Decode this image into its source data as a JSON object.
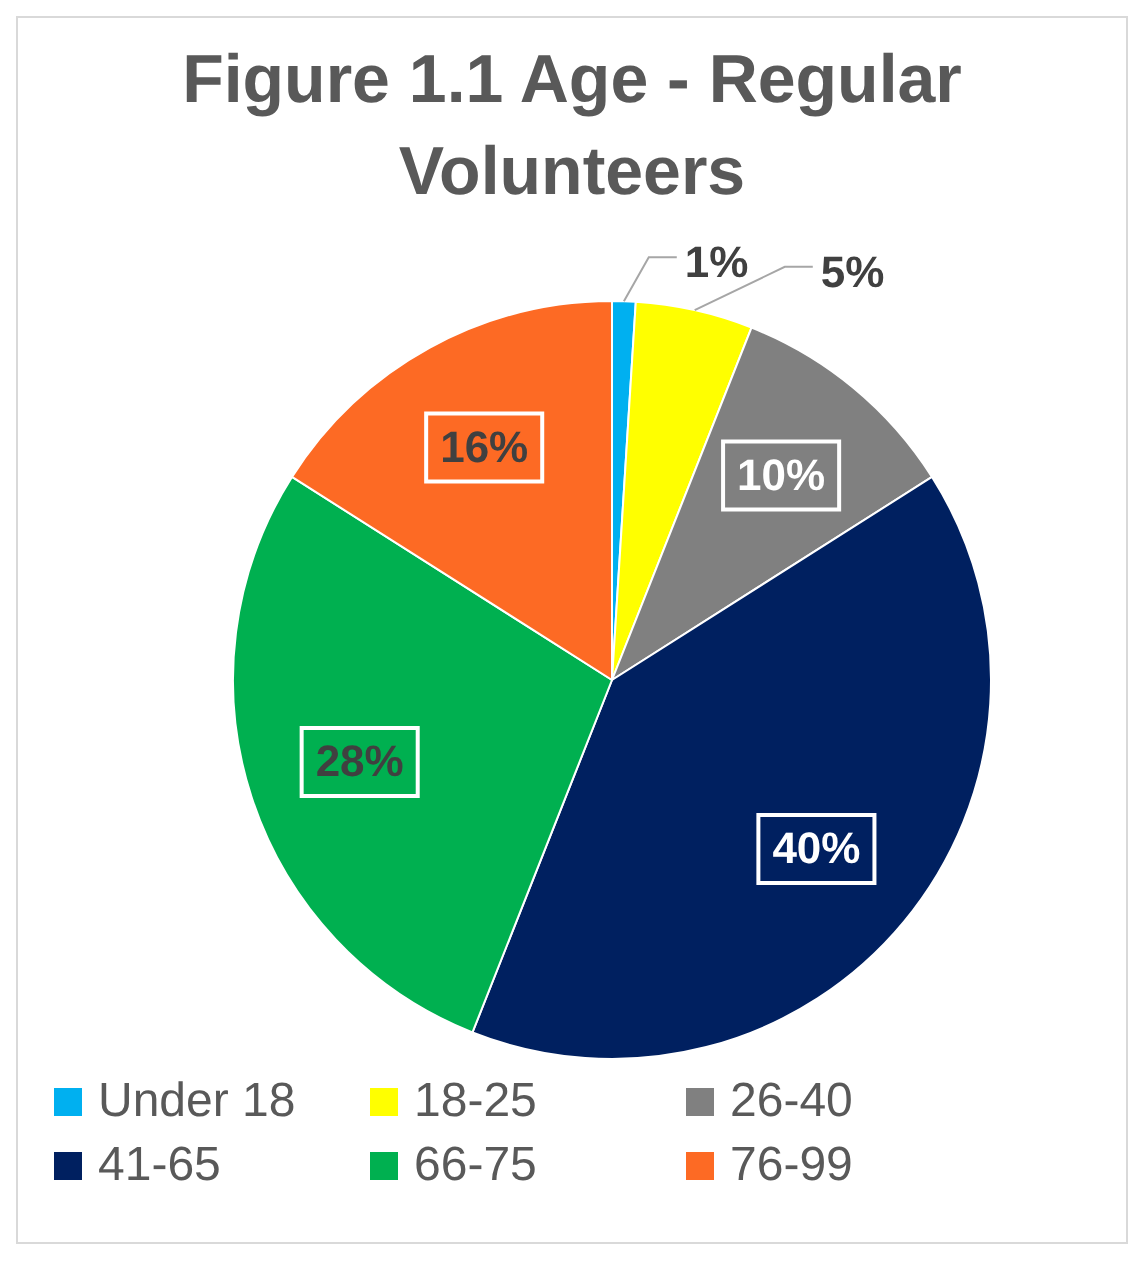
{
  "chart_data": {
    "type": "pie",
    "title": "Figure 1.1 Age - Regular Volunteers",
    "categories": [
      "Under 18",
      "18-25",
      "26-40",
      "41-65",
      "66-75",
      "76-99"
    ],
    "values": [
      1,
      5,
      10,
      40,
      28,
      16
    ],
    "value_labels": [
      "1%",
      "5%",
      "10%",
      "40%",
      "28%",
      "16%"
    ],
    "colors": [
      "#00b0f0",
      "#ffff00",
      "#808080",
      "#002060",
      "#00b050",
      "#fd6a24"
    ],
    "legend": "bottom"
  }
}
